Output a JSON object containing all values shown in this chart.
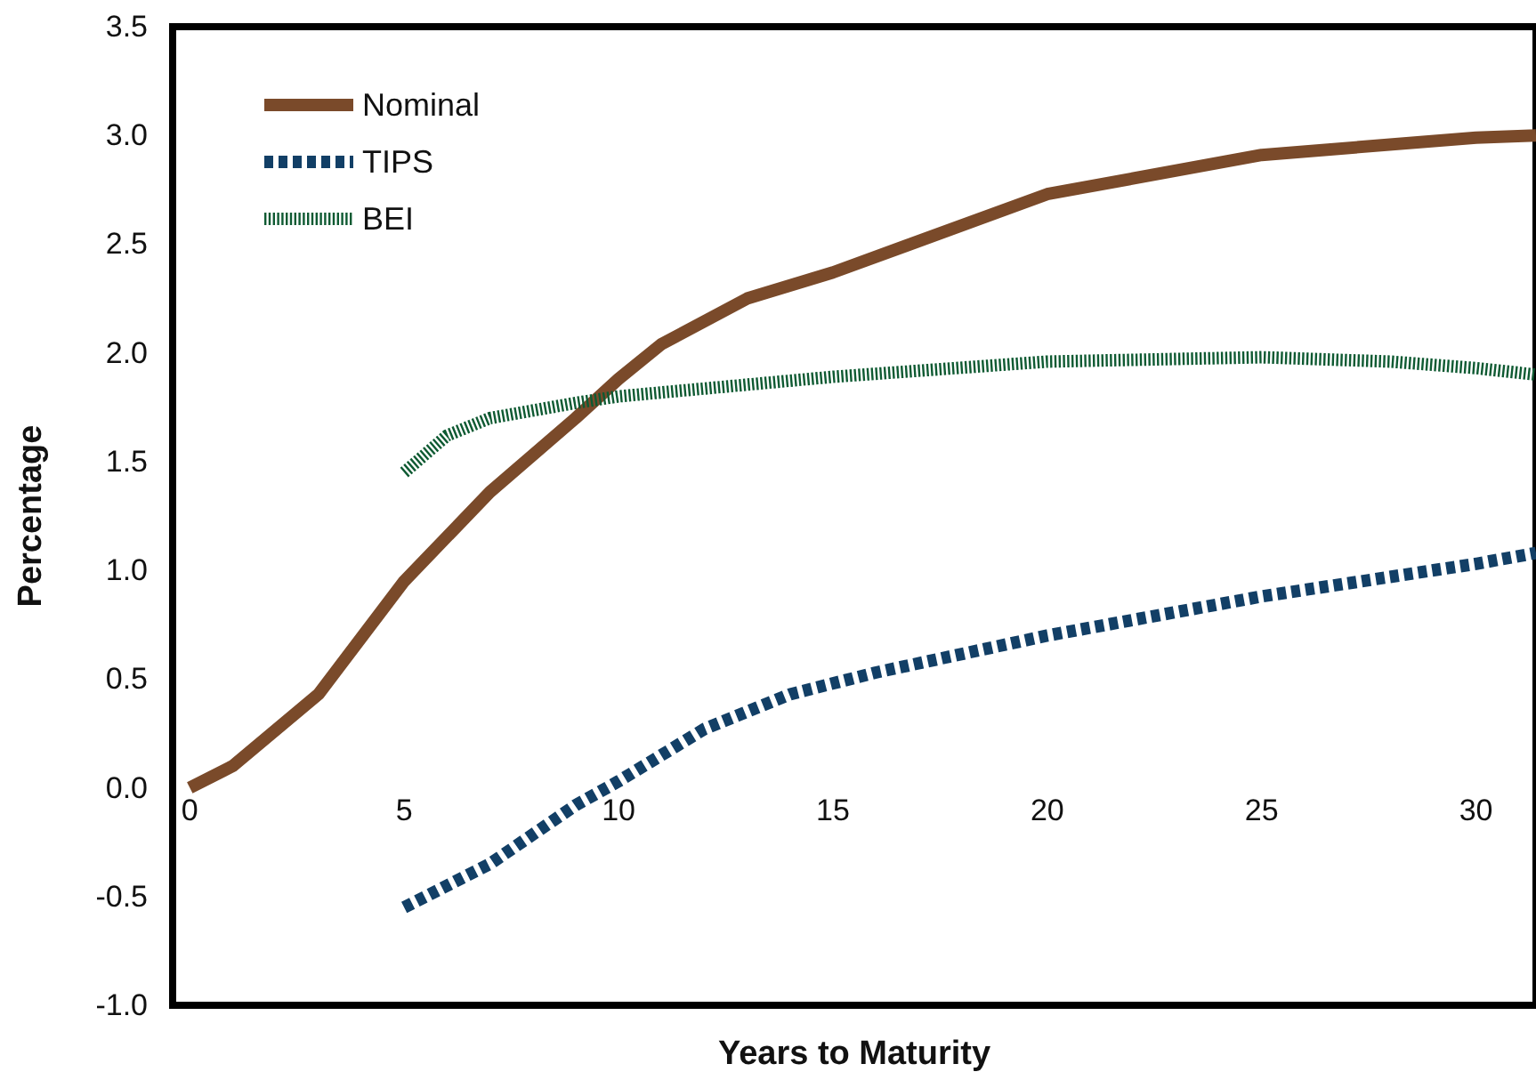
{
  "chart_data": {
    "type": "line",
    "xlabel": "Years to Maturity",
    "ylabel": "Percentage",
    "xlim": [
      -0.4,
      31.4
    ],
    "xticks": [
      0,
      5,
      10,
      15,
      20,
      25,
      30
    ],
    "ylim": [
      -1.0,
      3.5
    ],
    "yticks": [
      {
        "value": -1.0,
        "label": "-1.0"
      },
      {
        "value": -0.5,
        "label": "-0.5"
      },
      {
        "value": 0,
        "label": "0.0"
      },
      {
        "value": 0.5,
        "label": "0.5"
      },
      {
        "value": 1.0,
        "label": "1.0"
      },
      {
        "value": 1.5,
        "label": "1.5"
      },
      {
        "value": 2.0,
        "label": "2.0"
      },
      {
        "value": 2.5,
        "label": "2.5"
      },
      {
        "value": 3.0,
        "label": "3.0"
      },
      {
        "value": 3.5,
        "label": "3.5"
      }
    ],
    "legend": "top left",
    "grid": false,
    "marker": "none",
    "series": [
      {
        "name": "Nominal",
        "color": "#7a4a2a",
        "line_style": "solid",
        "x": [
          0,
          1,
          3,
          5,
          7,
          9,
          10,
          11,
          13,
          15,
          20,
          25,
          30,
          31.4
        ],
        "values": [
          0,
          0.1,
          0.43,
          0.95,
          1.36,
          1.7,
          1.88,
          2.04,
          2.25,
          2.37,
          2.73,
          2.91,
          2.99,
          3.0
        ]
      },
      {
        "name": "TIPS",
        "color": "#123f66",
        "line_style": "dashed",
        "x": [
          5,
          7,
          9,
          10,
          12,
          14,
          16,
          20,
          25,
          30,
          31.4
        ],
        "values": [
          -0.55,
          -0.35,
          -0.08,
          0.03,
          0.27,
          0.43,
          0.53,
          0.7,
          0.88,
          1.03,
          1.08
        ]
      },
      {
        "name": "BEI",
        "color": "#0e5a32",
        "line_style": "dotted",
        "x": [
          5,
          6,
          7,
          9,
          10,
          15,
          20,
          25,
          28,
          30,
          31.4
        ],
        "values": [
          1.45,
          1.62,
          1.7,
          1.77,
          1.8,
          1.89,
          1.96,
          1.98,
          1.96,
          1.93,
          1.9
        ]
      }
    ]
  }
}
